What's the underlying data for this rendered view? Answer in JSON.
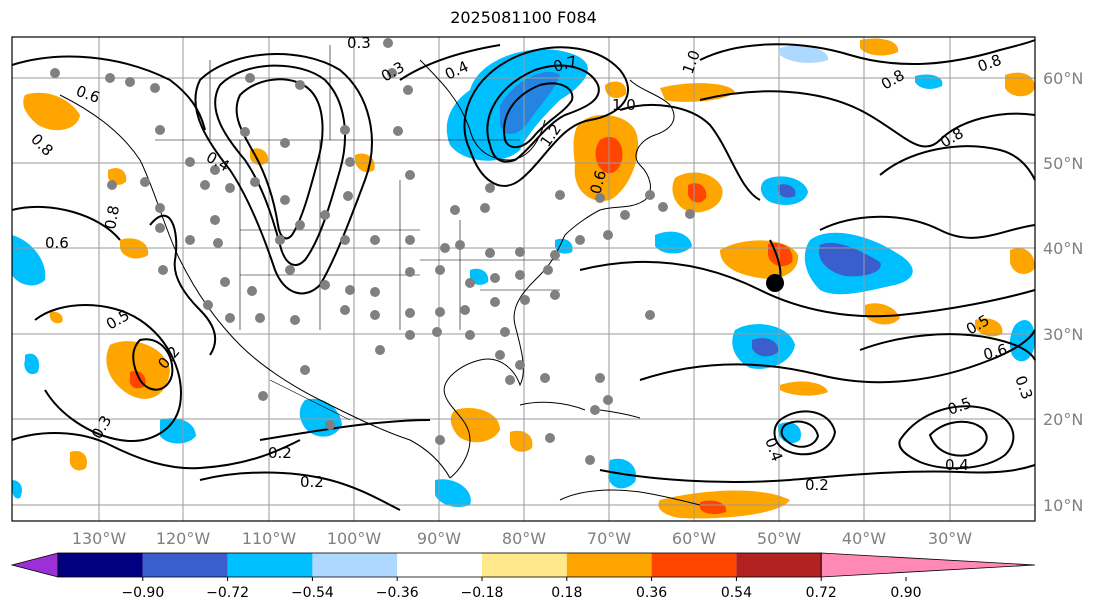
{
  "title": "2025081100 F084",
  "map": {
    "lat_labels": [
      "60°N",
      "50°N",
      "40°N",
      "30°N",
      "20°N",
      "10°N"
    ],
    "lon_labels": [
      "130°W",
      "120°W",
      "110°W",
      "100°W",
      "90°W",
      "80°W",
      "70°W",
      "60°W",
      "50°W",
      "40°W",
      "30°W"
    ],
    "contour_labels": [
      "0.3",
      "0.3",
      "0.4",
      "0.7",
      "1.0",
      "1.0",
      "1.2",
      "0.8",
      "0.8",
      "0.6",
      "0.8",
      "0.4",
      "0.6",
      "0.8",
      "0.6",
      "0.5",
      "0.2",
      "0.3",
      "0.2",
      "0.2",
      "0.5",
      "0.6",
      "0.3",
      "0.5",
      "0.4",
      "0.2",
      "0.4",
      "0.8"
    ],
    "colors": {
      "ocean": "#ffffff",
      "grid": "#9a9a9a",
      "contour": "#000000",
      "station": "#808080"
    }
  },
  "colorbar": {
    "ticks": [
      "−0.90",
      "−0.72",
      "−0.54",
      "−0.36",
      "−0.18",
      "0.18",
      "0.36",
      "0.54",
      "0.72",
      "0.90"
    ],
    "colors": [
      "#9b30d9",
      "#000080",
      "#3a5fcd",
      "#00bfff",
      "#add8ff",
      "#ffffff",
      "#ffe98a",
      "#ffa500",
      "#ff4500",
      "#b22222",
      "#ff88b4"
    ]
  }
}
